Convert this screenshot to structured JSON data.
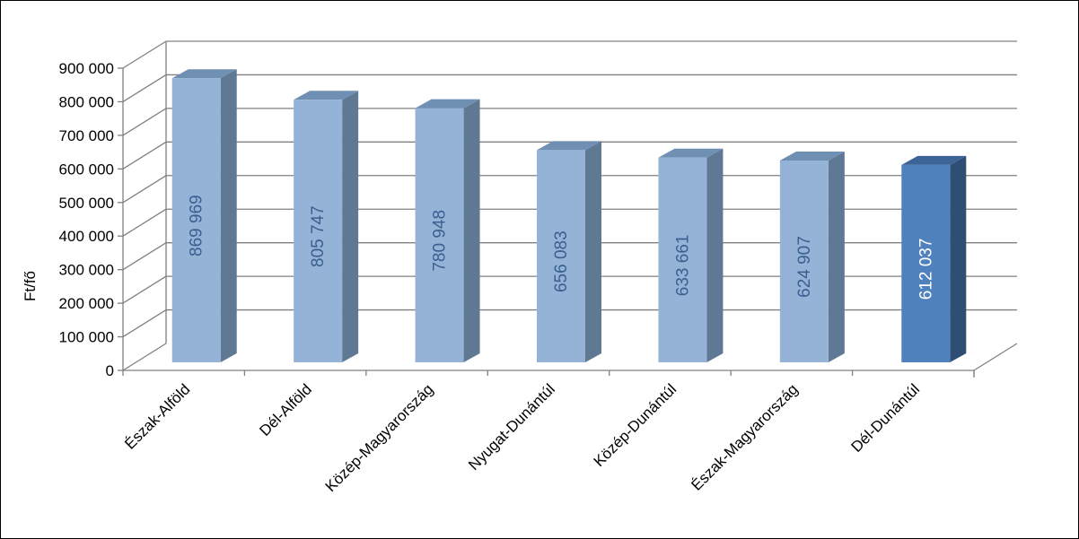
{
  "chart_data": {
    "type": "bar",
    "ylabel": "Ft/fő",
    "ylim": [
      0,
      900000
    ],
    "yticks": [
      0,
      100000,
      200000,
      300000,
      400000,
      500000,
      600000,
      700000,
      800000,
      900000
    ],
    "ytick_labels": [
      "0",
      "100 000",
      "200 000",
      "300 000",
      "400 000",
      "500 000",
      "600 000",
      "700 000",
      "800 000",
      "900 000"
    ],
    "grid": true,
    "categories": [
      "Észak-Alföld",
      "Dél-Alföld",
      "Közép-Magyarország",
      "Nyugat-Dunántúl",
      "Közép-Dunántúl",
      "Észak-Magyarország",
      "Dél-Dunántúl"
    ],
    "values": [
      869969,
      805747,
      780948,
      656083,
      633661,
      624907,
      612037
    ],
    "value_labels": [
      "869 969",
      "805 747",
      "780 948",
      "656 083",
      "633 661",
      "624 907",
      "612 037"
    ],
    "highlighted_index": 6,
    "colors": {
      "bar_front": "#95b3d7",
      "bar_top": "#6f8fb3",
      "bar_side": "#5f7894",
      "highlight_front": "#4f81bd",
      "highlight_top": "#3c6596",
      "highlight_side": "#2f4e74",
      "label_text": "#3a5f8f",
      "highlight_label_text": "#ffffff",
      "grid": "#808080"
    }
  }
}
